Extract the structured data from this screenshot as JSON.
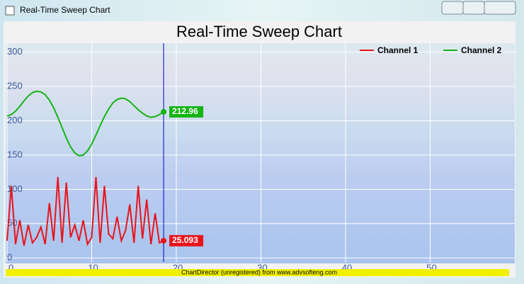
{
  "window": {
    "title": "Real-Time Sweep Chart"
  },
  "chart_data": {
    "type": "line",
    "title": "Real-Time Sweep Chart",
    "x": [
      0,
      0.5,
      1,
      1.5,
      2,
      2.5,
      3,
      3.5,
      4,
      4.5,
      5,
      5.5,
      6,
      6.5,
      7,
      7.5,
      8,
      8.5,
      9,
      9.5,
      10,
      10.5,
      11,
      11.5,
      12,
      12.5,
      13,
      13.5,
      14,
      14.5,
      15,
      15.5,
      16,
      16.5,
      17,
      17.5,
      18,
      18.5
    ],
    "series": [
      {
        "name": "Channel 1",
        "color": "#e8141c",
        "values": [
          25,
          105,
          20,
          55,
          18,
          48,
          22,
          30,
          45,
          20,
          80,
          25,
          118,
          22,
          110,
          30,
          48,
          25,
          55,
          20,
          30,
          118,
          22,
          105,
          35,
          28,
          60,
          25,
          40,
          78,
          22,
          105,
          28,
          85,
          20,
          65,
          22,
          25.093
        ]
      },
      {
        "name": "Channel 2",
        "color": "#14b414",
        "values": [
          207,
          209,
          214,
          221,
          229,
          236,
          241,
          243,
          242,
          238,
          230,
          219,
          205,
          190,
          175,
          162,
          153,
          149,
          150,
          156,
          166,
          179,
          193,
          206,
          217,
          226,
          231,
          233,
          232,
          228,
          222,
          216,
          211,
          207,
          205,
          206,
          209,
          212.96
        ]
      }
    ],
    "xlim": [
      0,
      60
    ],
    "xticks": [
      0,
      10,
      20,
      30,
      40,
      50
    ],
    "ylim": [
      -6,
      312
    ],
    "yticks": [
      0,
      50,
      100,
      150,
      200,
      250,
      300
    ],
    "grid": true,
    "legend": "top-right"
  },
  "footer": "ChartDirector (unregistered) from www.advsofteng.com"
}
